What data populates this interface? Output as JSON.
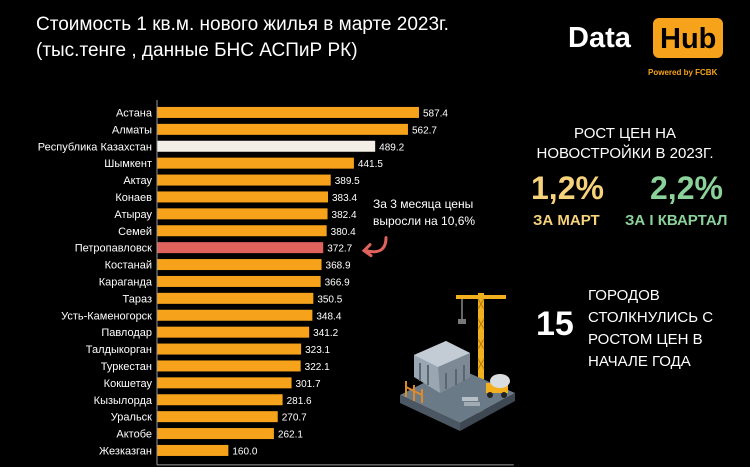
{
  "header": {
    "title_line1": "Стоимость 1 кв.м. нового жилья в марте 2023г.",
    "title_line2": "(тыс.тенге , данные БНС АСПиР РК)"
  },
  "logo": {
    "word1": "Data",
    "word2": "Hub",
    "tagline": "Powered by FCBK"
  },
  "chart_data": {
    "type": "bar",
    "orientation": "horizontal",
    "title": "Стоимость 1 кв.м. нового жилья в марте 2023г.",
    "subtitle": "(тыс.тенге , данные БНС АСПиР РК)",
    "categories": [
      "Астана",
      "Алматы",
      "Республика Казахстан",
      "Шымкент",
      "Актау",
      "Конаев",
      "Атырау",
      "Семей",
      "Петропавловск",
      "Костанай",
      "Караганда",
      "Тараз",
      "Усть-Каменогорск",
      "Павлодар",
      "Талдыкорган",
      "Туркестан",
      "Кокшетау",
      "Кызылорда",
      "Уральск",
      "Актобе",
      "Жезказган"
    ],
    "values": [
      587.4,
      562.7,
      489.2,
      441.5,
      389.5,
      383.4,
      382.4,
      380.4,
      372.7,
      368.9,
      366.9,
      350.5,
      348.4,
      341.2,
      323.1,
      322.1,
      301.7,
      281.6,
      270.7,
      262.1,
      160.0
    ],
    "value_labels": [
      "587.4",
      "562.7",
      "489.2",
      "441.5",
      "389.5",
      "383.4",
      "382.4",
      "380.4",
      "372.7",
      "368.9",
      "366.9",
      "350.5",
      "348.4",
      "341.2",
      "323.1",
      "322.1",
      "301.7",
      "281.6",
      "270.7",
      "262.1",
      "160.0"
    ],
    "highlight": {
      "Республика Казахстан": "#f4efe6",
      "Петропавловск": "#e0625d"
    },
    "bar_color": "#f7a21b",
    "xlim": [
      0,
      800
    ],
    "xticks": [
      "0",
      "200",
      "400",
      "600"
    ],
    "xtick_values": [
      0,
      200,
      400,
      600
    ],
    "grid": false,
    "legend": "none",
    "annotation": {
      "line1": "За 3 месяца цены",
      "line2": "выросли на 10,6%",
      "target": "Петропавловск"
    }
  },
  "panel": {
    "title_line1": "РОСТ ЦЕН НА",
    "title_line2": "НОВОСТРОЙКИ В 2023Г.",
    "stat1_value": "1,2%",
    "stat1_label": "ЗА МАРТ",
    "stat2_value": "2,2%",
    "stat2_label": "ЗА I КВАРТАЛ",
    "count_value": "15",
    "count_line1": "ГОРОДОВ",
    "count_line2": "СТОЛКНУЛИСЬ С",
    "count_line3": "РОСТОМ ЦЕН В",
    "count_line4": "НАЧАЛЕ ГОДА"
  },
  "colors": {
    "accent": "#f7a21b",
    "stat1": "#f6d27a",
    "stat2": "#8ad19a"
  },
  "illustration": "construction-site-with-crane"
}
